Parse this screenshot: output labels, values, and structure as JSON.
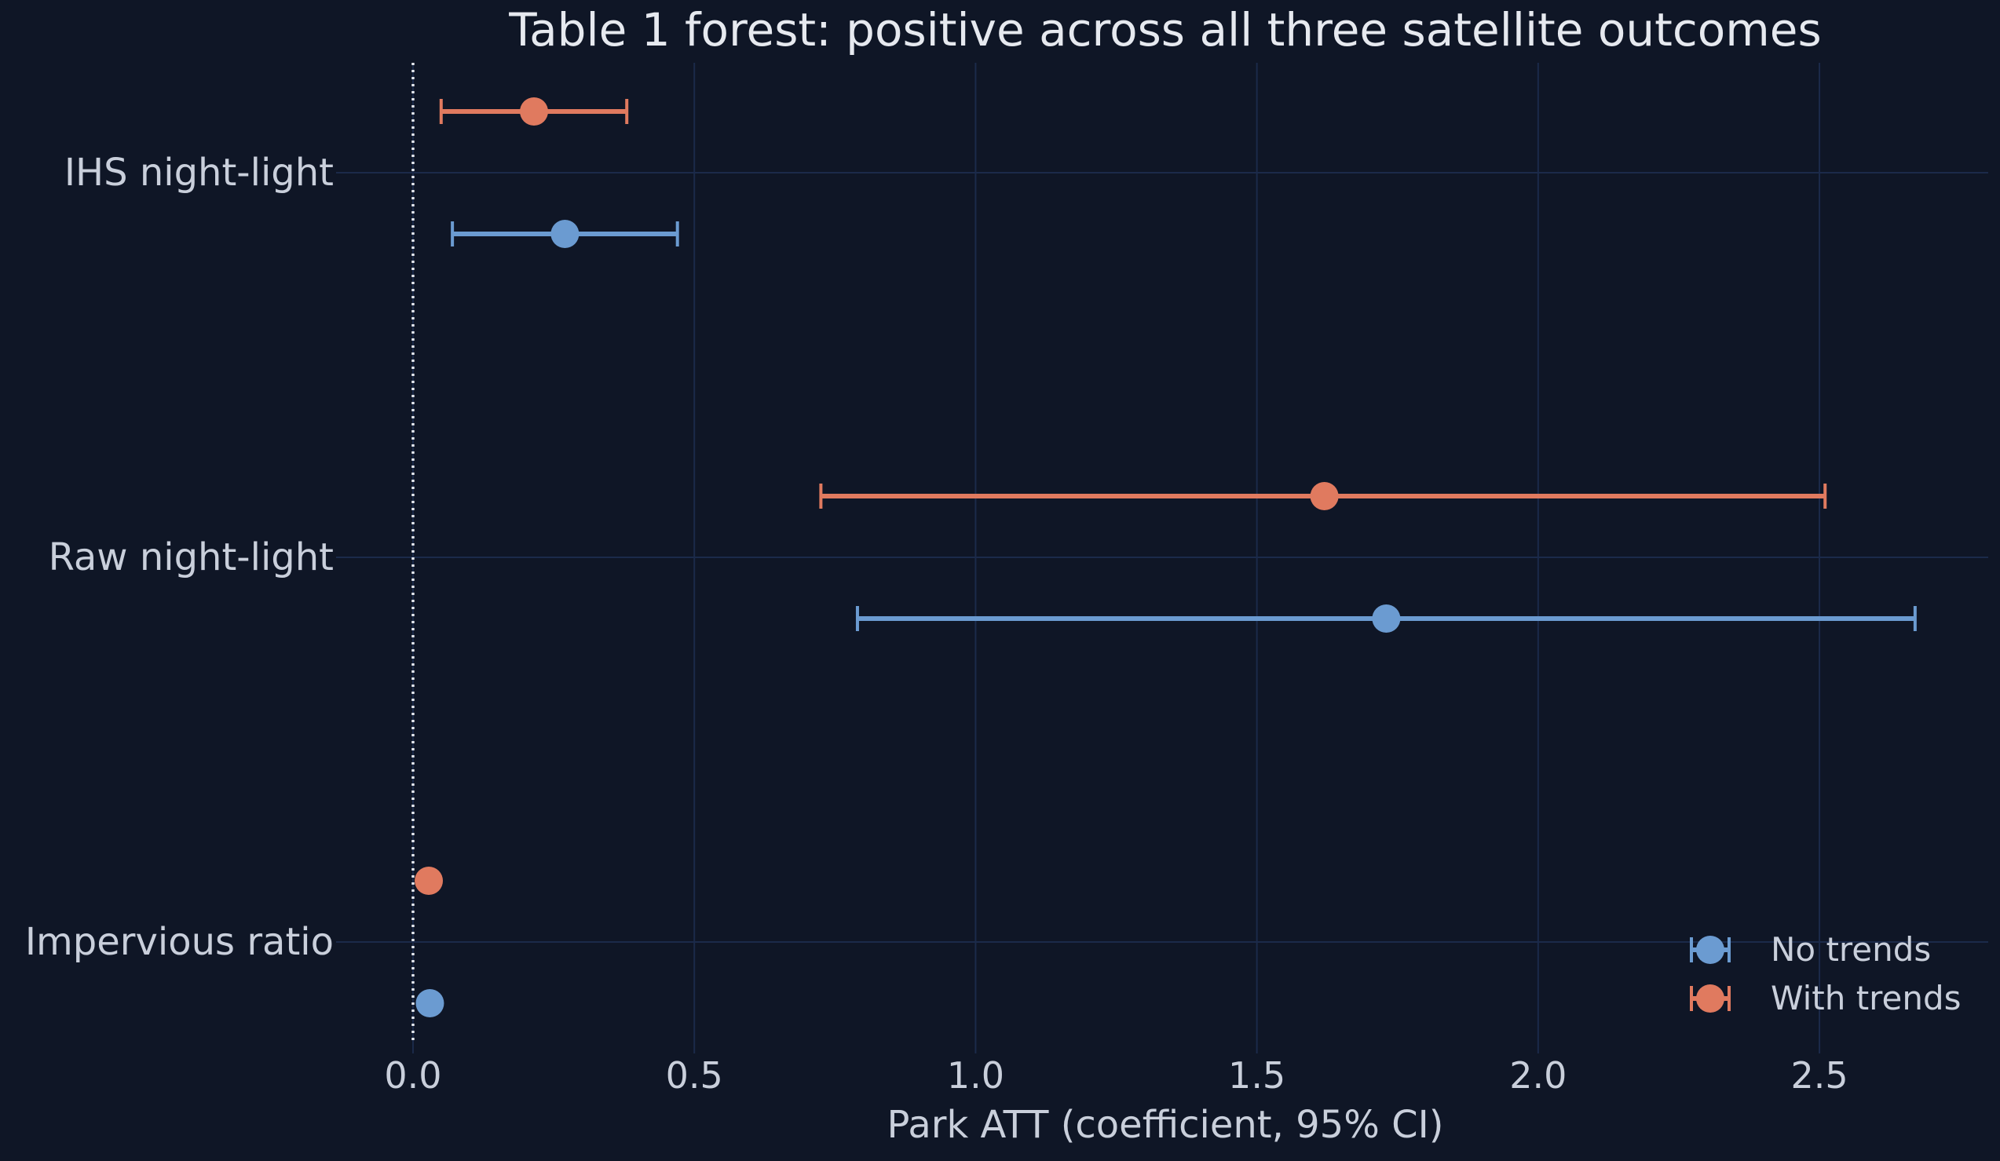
{
  "colors": {
    "background": "#0f1626",
    "grid": "#1b2a4a",
    "text": "#c9cfdb",
    "title": "#e6e9ef",
    "zero_line": "#e6e9ef",
    "no_trends": "#6b9bd1",
    "with_trends": "#e07a5f"
  },
  "chart_data": {
    "type": "scatter",
    "subtype": "forest",
    "title": "Table 1 forest: positive across all three satellite outcomes",
    "xlabel": "Park ATT (coefficient, 95% CI)",
    "ylabel": "",
    "xlim": [
      -0.12,
      2.8
    ],
    "x_ticks": [
      0.0,
      0.5,
      1.0,
      1.5,
      2.0,
      2.5
    ],
    "x_tick_labels": [
      "0.0",
      "0.5",
      "1.0",
      "1.5",
      "2.0",
      "2.5"
    ],
    "categories": [
      "IHS night-light",
      "Raw night-light",
      "Impervious ratio"
    ],
    "reference_line": 0,
    "grid": true,
    "legend_position": "bottom-right",
    "series": [
      {
        "name": "No trends",
        "color": "#6b9bd1",
        "values": [
          0.27,
          1.73,
          0.03
        ],
        "ci_low": [
          0.07,
          0.79,
          0.03
        ],
        "ci_high": [
          0.47,
          2.67,
          0.03
        ]
      },
      {
        "name": "With trends",
        "color": "#e07a5f",
        "values": [
          0.215,
          1.62,
          0.028
        ],
        "ci_low": [
          0.05,
          0.725,
          0.028
        ],
        "ci_high": [
          0.38,
          2.51,
          0.028
        ]
      }
    ]
  }
}
